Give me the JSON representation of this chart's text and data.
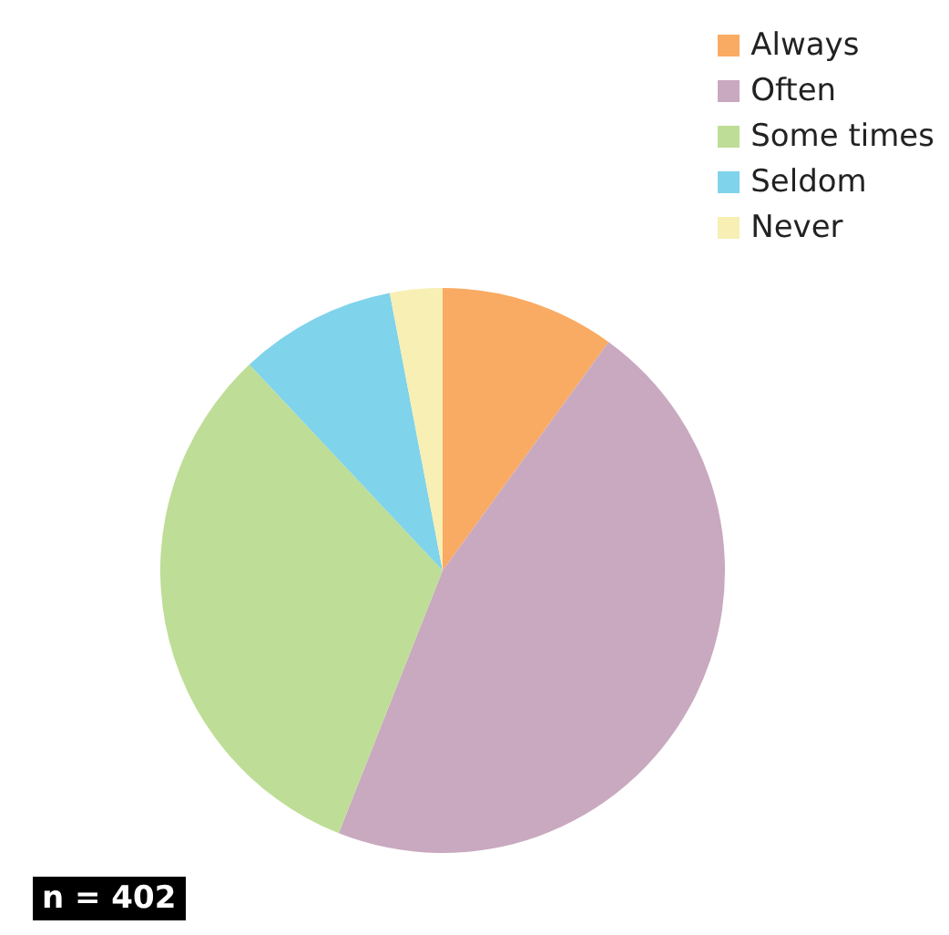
{
  "chart_data": {
    "type": "pie",
    "categories": [
      "Always",
      "Often",
      "Some times",
      "Seldom",
      "Never"
    ],
    "values": [
      10,
      46,
      32,
      9,
      3
    ],
    "colors": [
      "#f9ab63",
      "#c9a9bf",
      "#bedd96",
      "#7fd3ea",
      "#f7efb4"
    ],
    "legend": "top right",
    "annotations": [
      "n = 402"
    ]
  }
}
